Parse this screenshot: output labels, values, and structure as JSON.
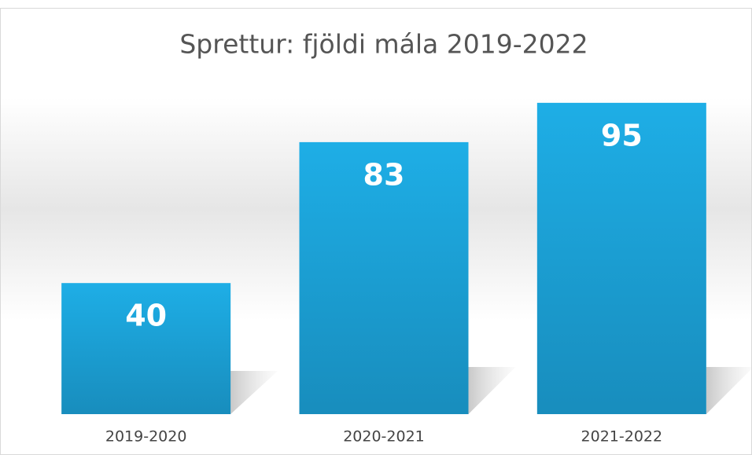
{
  "chart_data": {
    "type": "bar",
    "title": "Sprettur: fjöldi mála 2019-2022",
    "categories": [
      "2019-2020",
      "2020-2021",
      "2021-2022"
    ],
    "values": [
      40,
      83,
      95
    ],
    "color": "#1ba9df"
  }
}
